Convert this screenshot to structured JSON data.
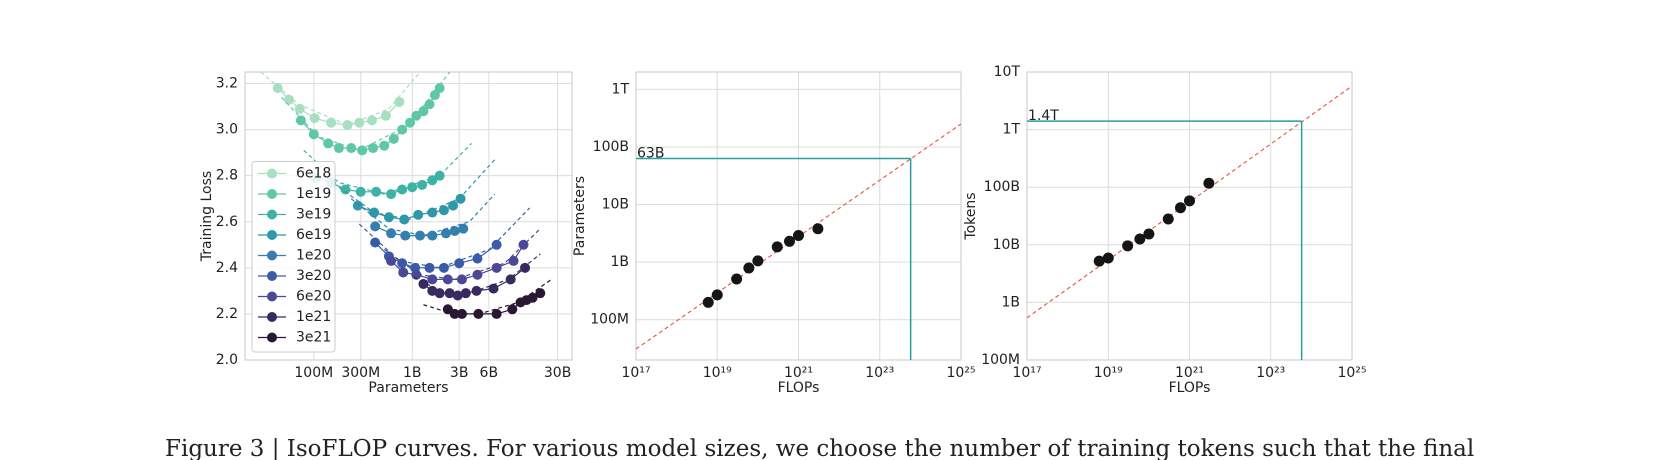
{
  "caption": "Figure 3 | IsoFLOP curves. For various model sizes, we choose the number of training tokens such that the final",
  "chart_data": [
    {
      "type": "line",
      "xlabel": "Parameters",
      "ylabel": "Training Loss",
      "xlog": true,
      "ylog": false,
      "grid": true,
      "legend": "lower left",
      "xlim": [
        20000000.0,
        42000000000.0
      ],
      "ylim": [
        2.0,
        3.25
      ],
      "xticks": [
        {
          "value": 100000000.0,
          "label": "100M"
        },
        {
          "value": 300000000.0,
          "label": "300M"
        },
        {
          "value": 1000000000.0,
          "label": "1B"
        },
        {
          "value": 3000000000.0,
          "label": "3B"
        },
        {
          "value": 6000000000.0,
          "label": "6B"
        },
        {
          "value": 30000000000.0,
          "label": "30B"
        }
      ],
      "yticks": [
        {
          "value": 2,
          "label": "2.0"
        },
        2.2,
        2.4,
        2.6,
        2.8,
        {
          "value": 3,
          "label": "3.0"
        },
        3.2
      ],
      "series": [
        {
          "name": "6e18",
          "color": "#a8dfc0",
          "x": [
            43000000.0,
            56000000.0,
            72000000.0,
            102000000.0,
            150000000.0,
            220000000.0,
            290000000.0,
            390000000.0,
            540000000.0,
            740000000.0
          ],
          "values": [
            3.18,
            3.13,
            3.09,
            3.05,
            3.03,
            3.02,
            3.03,
            3.04,
            3.06,
            3.12
          ],
          "fit_x": [
            29000000.0,
            70000000.0,
            220000000.0,
            580000000.0,
            1200000000.0
          ],
          "fit_values": [
            3.25,
            3.11,
            3.02,
            3.09,
            3.25
          ]
        },
        {
          "name": "1e19",
          "color": "#5ec8a2",
          "x": [
            74000000.0,
            100000000.0,
            140000000.0,
            180000000.0,
            240000000.0,
            310000000.0,
            400000000.0,
            520000000.0,
            650000000.0,
            790000000.0,
            950000000.0,
            1100000000.0,
            1300000000.0,
            1500000000.0,
            1700000000.0,
            1900000000.0
          ],
          "values": [
            3.04,
            2.98,
            2.94,
            2.92,
            2.92,
            2.91,
            2.92,
            2.93,
            2.96,
            3.0,
            3.03,
            3.06,
            3.08,
            3.11,
            3.15,
            3.18
          ],
          "fit_x": [
            47000000.0,
            110000000.0,
            290000000.0,
            930000000.0,
            2400000000.0
          ],
          "fit_values": [
            3.14,
            2.97,
            2.91,
            3.02,
            3.25
          ]
        },
        {
          "name": "3e19",
          "color": "#3fb2a6",
          "x": [
            105000000.0,
            150000000.0,
            210000000.0,
            300000000.0,
            430000000.0,
            610000000.0,
            790000000.0,
            1000000000.0,
            1260000000.0,
            1600000000.0,
            1900000000.0
          ],
          "values": [
            2.79,
            2.77,
            2.74,
            2.73,
            2.73,
            2.72,
            2.74,
            2.75,
            2.76,
            2.78,
            2.8
          ],
          "fit_x": [
            79000000.0,
            180000000.0,
            520000000.0,
            1900000000.0,
            4000000000.0
          ],
          "fit_values": [
            2.91,
            2.77,
            2.72,
            2.8,
            2.94
          ]
        },
        {
          "name": "6e19",
          "color": "#2f98a8",
          "x": [
            280000000.0,
            410000000.0,
            580000000.0,
            830000000.0,
            1150000000.0,
            1600000000.0,
            2100000000.0,
            2600000000.0,
            3100000000.0
          ],
          "values": [
            2.67,
            2.64,
            2.62,
            2.61,
            2.63,
            2.64,
            2.65,
            2.67,
            2.7
          ],
          "fit_x": [
            180000000.0,
            410000000.0,
            930000000.0,
            3000000000.0,
            6900000000.0
          ],
          "fit_values": [
            2.75,
            2.64,
            2.61,
            2.7,
            2.87
          ]
        },
        {
          "name": "1e20",
          "color": "#357fae",
          "x": [
            420000000.0,
            610000000.0,
            850000000.0,
            1200000000.0,
            1600000000.0,
            2200000000.0,
            2700000000.0,
            3300000000.0
          ],
          "values": [
            2.58,
            2.55,
            2.54,
            2.54,
            2.54,
            2.55,
            2.56,
            2.57
          ],
          "fit_x": [
            240000000.0,
            580000000.0,
            1300000000.0,
            3800000000.0,
            6900000000.0
          ],
          "fit_values": [
            2.7,
            2.57,
            2.54,
            2.6,
            2.72
          ]
        },
        {
          "name": "3e20",
          "color": "#3a5ca8",
          "x": [
            420000000.0,
            580000000.0,
            790000000.0,
            1070000000.0,
            1500000000.0,
            2100000000.0,
            3000000000.0,
            4600000000.0,
            7200000000.0
          ],
          "values": [
            2.51,
            2.45,
            2.42,
            2.4,
            2.4,
            2.4,
            2.42,
            2.44,
            2.5
          ],
          "fit_x": [
            290000000.0,
            740000000.0,
            1900000000.0,
            6100000000.0,
            15600000000.0
          ],
          "fit_values": [
            2.59,
            2.43,
            2.4,
            2.48,
            2.66
          ]
        },
        {
          "name": "6e20",
          "color": "#4b4895",
          "x": [
            610000000.0,
            810000000.0,
            1100000000.0,
            1600000000.0,
            2300000000.0,
            3200000000.0,
            4600000000.0,
            7200000000.0,
            10700000000.0,
            13500000000.0
          ],
          "values": [
            2.43,
            2.38,
            2.37,
            2.35,
            2.35,
            2.35,
            2.37,
            2.4,
            2.43,
            2.5
          ],
          "fit_x": [
            520000000.0,
            1200000000.0,
            2700000000.0,
            8700000000.0,
            20000000000.0
          ],
          "fit_values": [
            2.48,
            2.37,
            2.35,
            2.42,
            2.57
          ]
        },
        {
          "name": "1e21",
          "color": "#362a5f",
          "x": [
            1300000000.0,
            1600000000.0,
            1900000000.0,
            2400000000.0,
            2900000000.0,
            3500000000.0,
            4500000000.0,
            6700000000.0,
            10000000000.0,
            14000000000.0
          ],
          "values": [
            2.33,
            2.3,
            2.29,
            2.29,
            2.28,
            2.29,
            2.3,
            2.31,
            2.35,
            2.4
          ],
          "fit_x": [
            1050000000.0,
            2100000000.0,
            3800000000.0,
            9500000000.0,
            20000000000.0
          ],
          "fit_values": [
            2.36,
            2.29,
            2.29,
            2.35,
            2.46
          ]
        },
        {
          "name": "3e21",
          "color": "#2a1833",
          "x": [
            2300000000.0,
            2700000000.0,
            3200000000.0,
            4700000000.0,
            7200000000.0,
            10400000000.0,
            12600000000.0,
            14500000000.0,
            16700000000.0,
            20000000000.0
          ],
          "values": [
            2.22,
            2.2,
            2.2,
            2.2,
            2.2,
            2.22,
            2.25,
            2.26,
            2.27,
            2.29
          ],
          "fit_x": [
            1300000000.0,
            2600000000.0,
            4800000000.0,
            12000000000.0,
            26000000000.0
          ],
          "fit_values": [
            2.24,
            2.2,
            2.2,
            2.25,
            2.35
          ]
        }
      ]
    },
    {
      "type": "scatter",
      "xlabel": "FLOPs",
      "ylabel": "Parameters",
      "xlog": true,
      "ylog": true,
      "grid": true,
      "xlim": [
        1e+17,
        1e+25
      ],
      "ylim": [
        20000000.0,
        2000000000000.0
      ],
      "xticks": [
        {
          "value": 1e+17,
          "label": "10¹⁷"
        },
        {
          "value": 1e+19,
          "label": "10¹⁹"
        },
        {
          "value": 1e+21,
          "label": "10²¹"
        },
        {
          "value": 1e+23,
          "label": "10²³"
        },
        {
          "value": 1e+25,
          "label": "10²⁵"
        }
      ],
      "yticks": [
        {
          "value": 100000000.0,
          "label": "100M"
        },
        {
          "value": 1000000000.0,
          "label": "1B"
        },
        {
          "value": 10000000000.0,
          "label": "10B"
        },
        {
          "value": 100000000000.0,
          "label": "100B"
        },
        {
          "value": 1000000000000.0,
          "label": "1T"
        }
      ],
      "color": "#151515",
      "x": [
        6e+18,
        1e+19,
        3e+19,
        6e+19,
        1e+20,
        3e+20,
        6e+20,
        1e+21,
        3e+21
      ],
      "values": [
        200000000.0,
        270000000.0,
        510000000.0,
        790000000.0,
        1050000000.0,
        1840000000.0,
        2300000000.0,
        2900000000.0,
        3800000000.0
      ],
      "fit": {
        "color": "#e8604a",
        "x": [
          1e+17,
          1e+25
        ],
        "values": [
          31000000.0,
          250000000000.0
        ]
      },
      "projection": {
        "color": "#2a9d9d",
        "x": 5.76e+23,
        "y": 63000000000.0,
        "label": "63B"
      }
    },
    {
      "type": "scatter",
      "xlabel": "FLOPs",
      "ylabel": "Tokens",
      "xlog": true,
      "ylog": true,
      "grid": true,
      "xlim": [
        1e+17,
        1e+25
      ],
      "ylim": [
        100000000.0,
        10000000000000.0
      ],
      "xticks": [
        {
          "value": 1e+17,
          "label": "10¹⁷"
        },
        {
          "value": 1e+19,
          "label": "10¹⁹"
        },
        {
          "value": 1e+21,
          "label": "10²¹"
        },
        {
          "value": 1e+23,
          "label": "10²³"
        },
        {
          "value": 1e+25,
          "label": "10²⁵"
        }
      ],
      "yticks": [
        {
          "value": 100000000.0,
          "label": "100M"
        },
        {
          "value": 1000000000.0,
          "label": "1B"
        },
        {
          "value": 10000000000.0,
          "label": "10B"
        },
        {
          "value": 100000000000.0,
          "label": "100B"
        },
        {
          "value": 1000000000000.0,
          "label": "1T"
        },
        {
          "value": 10000000000000.0,
          "label": "10T"
        }
      ],
      "color": "#151515",
      "x": [
        6e+18,
        1e+19,
        3e+19,
        6e+19,
        1e+20,
        3e+20,
        6e+20,
        1e+21,
        3e+21
      ],
      "values": [
        5200000000.0,
        5900000000.0,
        9600000000.0,
        12600000000.0,
        15400000000.0,
        28000000000.0,
        44000000000.0,
        58000000000.0,
        117000000000.0
      ],
      "fit": {
        "color": "#e8604a",
        "x": [
          1e+17,
          1e+25
        ],
        "values": [
          540000000.0,
          5700000000000.0
        ]
      },
      "projection": {
        "color": "#2a9d9d",
        "x": 5.76e+23,
        "y": 1400000000000.0,
        "label": "1.4T"
      }
    }
  ]
}
